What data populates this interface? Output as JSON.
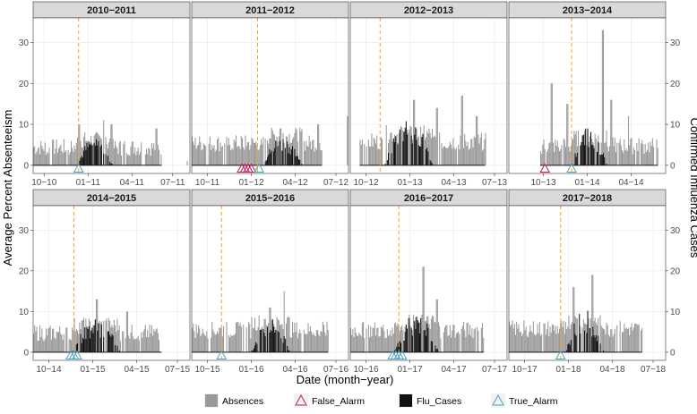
{
  "chart_data": {
    "type": "bar",
    "xlabel": "Date (month−year)",
    "ylabel": "Average Percent Absenteeism",
    "y2label": "Confirmed Influenza Cases",
    "ylim": [
      -2,
      36
    ],
    "yticks": [
      0,
      10,
      20,
      30
    ],
    "grid": true,
    "legend_position": "bottom",
    "legend": [
      {
        "label": "Absences",
        "kind": "bar",
        "color": "#999999"
      },
      {
        "label": "False_Alarm",
        "kind": "triangle",
        "color": "#c51b5e"
      },
      {
        "label": "Flu_Cases",
        "kind": "bar",
        "color": "#111111"
      },
      {
        "label": "True_Alarm",
        "kind": "triangle",
        "color": "#4aa3c8"
      }
    ],
    "panels": [
      {
        "season": "2010−2011",
        "x_ticks": [
          "10−10",
          "01−11",
          "04−11",
          "07−11"
        ],
        "tick_fracs": [
          0.07,
          0.35,
          0.63,
          0.89
        ],
        "absence_range": [
          0.0,
          0.82
        ],
        "absence_base": 3.2,
        "absence_amp": 2.6,
        "absence_spikes": [
          [
            0.29,
            10
          ],
          [
            0.45,
            11
          ],
          [
            0.5,
            10
          ],
          [
            0.78,
            9
          ]
        ],
        "flu_range": [
          0.28,
          0.5
        ],
        "flu_peak": 7,
        "threshold_frac": 0.29,
        "true_alarms": [
          0.29
        ],
        "false_alarms": [],
        "extra_bars": [
          [
            0.98,
            1
          ]
        ]
      },
      {
        "season": "2011−2012",
        "x_ticks": [
          "10−11",
          "01−12",
          "04−12",
          "07−12"
        ],
        "tick_fracs": [
          0.1,
          0.38,
          0.66,
          0.92
        ],
        "absence_range": [
          0.0,
          0.83
        ],
        "absence_base": 4.2,
        "absence_amp": 2.6,
        "absence_spikes": [
          [
            0.56,
            9
          ],
          [
            0.8,
            10
          ]
        ],
        "flu_range": [
          0.45,
          0.7
        ],
        "flu_peak": 7,
        "threshold_frac": 0.42,
        "true_alarms": [
          0.43
        ],
        "false_alarms": [
          0.32,
          0.34,
          0.36,
          0.38
        ],
        "extra_bars": [
          [
            0.99,
            12
          ]
        ]
      },
      {
        "season": "2012−2013",
        "x_ticks": [
          "10−12",
          "01−13",
          "04−13",
          "07−13"
        ],
        "tick_fracs": [
          0.1,
          0.38,
          0.66,
          0.92
        ],
        "absence_range": [
          0.06,
          0.86
        ],
        "absence_base": 4.5,
        "absence_amp": 2.8,
        "absence_spikes": [
          [
            0.21,
            13
          ],
          [
            0.4,
            16
          ],
          [
            0.55,
            14
          ],
          [
            0.71,
            17
          ],
          [
            0.8,
            12
          ]
        ],
        "flu_range": [
          0.22,
          0.52
        ],
        "flu_peak": 12,
        "threshold_frac": 0.19,
        "true_alarms": [],
        "false_alarms": [],
        "extra_bars": []
      },
      {
        "season": "2013−2014",
        "x_ticks": [
          "10−13",
          "01−14",
          "04−14"
        ],
        "tick_fracs": [
          0.22,
          0.5,
          0.78
        ],
        "absence_range": [
          0.2,
          0.95
        ],
        "absence_base": 3.6,
        "absence_amp": 2.6,
        "absence_spikes": [
          [
            0.27,
            20
          ],
          [
            0.37,
            15
          ],
          [
            0.6,
            33
          ],
          [
            0.65,
            16
          ],
          [
            0.76,
            12
          ]
        ],
        "flu_range": [
          0.4,
          0.62
        ],
        "flu_peak": 9,
        "threshold_frac": 0.4,
        "true_alarms": [
          0.4
        ],
        "false_alarms": [
          0.23
        ],
        "extra_bars": []
      },
      {
        "season": "2014−2015",
        "x_ticks": [
          "10−14",
          "01−15",
          "04−15",
          "07−15"
        ],
        "tick_fracs": [
          0.1,
          0.38,
          0.66,
          0.92
        ],
        "absence_range": [
          0.0,
          0.82
        ],
        "absence_base": 3.6,
        "absence_amp": 2.6,
        "absence_spikes": [
          [
            0.4,
            13
          ],
          [
            0.6,
            10
          ],
          [
            0.82,
            13
          ]
        ],
        "flu_range": [
          0.25,
          0.55
        ],
        "flu_peak": 8,
        "threshold_frac": 0.26,
        "true_alarms": [
          0.24,
          0.26,
          0.28
        ],
        "false_alarms": [],
        "extra_bars": []
      },
      {
        "season": "2015−2016",
        "x_ticks": [
          "10−15",
          "01−16",
          "04−16",
          "07−16"
        ],
        "tick_fracs": [
          0.1,
          0.38,
          0.66,
          0.92
        ],
        "absence_range": [
          0.0,
          0.87
        ],
        "absence_base": 4.3,
        "absence_amp": 2.6,
        "absence_spikes": [
          [
            0.59,
            15
          ],
          [
            0.5,
            11
          ]
        ],
        "flu_range": [
          0.38,
          0.62
        ],
        "flu_peak": 8,
        "threshold_frac": 0.19,
        "true_alarms": [
          0.19
        ],
        "false_alarms": [],
        "extra_bars": []
      },
      {
        "season": "2016−2017",
        "x_ticks": [
          "10−16",
          "01−17",
          "04−17",
          "07−17"
        ],
        "tick_fracs": [
          0.1,
          0.38,
          0.66,
          0.92
        ],
        "absence_range": [
          0.0,
          0.85
        ],
        "absence_base": 4.3,
        "absence_amp": 2.6,
        "absence_spikes": [
          [
            0.46,
            21
          ],
          [
            0.55,
            13
          ]
        ],
        "flu_range": [
          0.28,
          0.56
        ],
        "flu_peak": 9,
        "threshold_frac": 0.31,
        "true_alarms": [
          0.27,
          0.29,
          0.31,
          0.33
        ],
        "false_alarms": [],
        "extra_bars": []
      },
      {
        "season": "2017−2018",
        "x_ticks": [
          "10−17",
          "01−18",
          "04−18",
          "07−18"
        ],
        "tick_fracs": [
          0.1,
          0.38,
          0.66,
          0.92
        ],
        "absence_range": [
          0.0,
          0.85
        ],
        "absence_base": 4.6,
        "absence_amp": 2.6,
        "absence_spikes": [
          [
            0.41,
            16
          ],
          [
            0.53,
            19
          ]
        ],
        "flu_range": [
          0.36,
          0.6
        ],
        "flu_peak": 10,
        "threshold_frac": 0.33,
        "true_alarms": [
          0.33
        ],
        "false_alarms": [],
        "extra_bars": []
      }
    ]
  }
}
